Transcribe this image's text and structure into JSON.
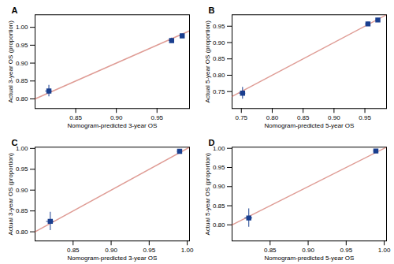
{
  "chart_data": [
    {
      "type": "scatter",
      "title": "A",
      "xlabel": "Nomogram-predicted 3-year OS",
      "ylabel": "Actual 3-year OS (proportion)",
      "xlim": [
        0.8,
        0.99
      ],
      "ylim": [
        0.773,
        1.035
      ],
      "xticks": [
        0.85,
        {
          "value": 0.9,
          "label": "0.90"
        },
        0.95
      ],
      "yticks": [
        {
          "value": 0.8,
          "label": "0.80"
        },
        0.85,
        {
          "value": 0.9,
          "label": "0.90"
        },
        0.95,
        {
          "value": 1.0,
          "label": "1.00"
        }
      ],
      "grid": false,
      "series": [
        {
          "type": "line",
          "color": "#c0392b",
          "x": [
            0.8,
            0.99
          ],
          "values": [
            0.8,
            0.99
          ]
        },
        {
          "type": "scatter",
          "marker": "square",
          "color": "#1a3f8f",
          "x": [
            0.817,
            0.968,
            0.981
          ],
          "values": [
            0.822,
            0.963,
            0.976
          ],
          "xerr": [
            0.004,
            0.003,
            0.003
          ],
          "yerr": [
            0.016,
            0.007,
            0.005
          ]
        }
      ]
    },
    {
      "type": "scatter",
      "title": "B",
      "xlabel": "Nomogram-predicted 5-year OS",
      "ylabel": "Actual 5-year OS (proportion)",
      "xlim": [
        0.735,
        0.985
      ],
      "ylim": [
        0.698,
        0.985
      ],
      "xticks": [
        0.75,
        {
          "value": 0.8,
          "label": "0.80"
        },
        0.85,
        {
          "value": 0.9,
          "label": "0.90"
        },
        0.95
      ],
      "yticks": [
        0.75,
        {
          "value": 0.8,
          "label": "0.80"
        },
        0.85,
        {
          "value": 0.9,
          "label": "0.90"
        },
        0.95
      ],
      "grid": false,
      "series": [
        {
          "type": "line",
          "color": "#c0392b",
          "x": [
            0.735,
            0.985
          ],
          "values": [
            0.735,
            0.985
          ]
        },
        {
          "type": "scatter",
          "marker": "square",
          "color": "#1a3f8f",
          "x": [
            0.752,
            0.955,
            0.971
          ],
          "values": [
            0.745,
            0.957,
            0.969
          ],
          "xerr": [
            0.005,
            0.004,
            0.003
          ],
          "yerr": [
            0.018,
            0.006,
            0.005
          ]
        }
      ]
    },
    {
      "type": "scatter",
      "title": "C",
      "xlabel": "Nomogram-predicted 3-year OS",
      "ylabel": "Actual 3-year OS (proportion)",
      "xlim": [
        0.8,
        1.003
      ],
      "ylim": [
        0.778,
        1.003
      ],
      "xticks": [
        0.85,
        {
          "value": 0.9,
          "label": "0.90"
        },
        0.95,
        {
          "value": 1.0,
          "label": "1.00"
        }
      ],
      "yticks": [
        {
          "value": 0.8,
          "label": "0.80"
        },
        0.85,
        {
          "value": 0.9,
          "label": "0.90"
        },
        0.95,
        {
          "value": 1.0,
          "label": "1.00"
        }
      ],
      "grid": false,
      "series": [
        {
          "type": "line",
          "color": "#c0392b",
          "x": [
            0.8,
            1.003
          ],
          "values": [
            0.8,
            1.003
          ]
        },
        {
          "type": "scatter",
          "marker": "square",
          "color": "#1a3f8f",
          "x": [
            0.82,
            0.99
          ],
          "values": [
            0.825,
            0.993
          ],
          "xerr": [
            0.005,
            0.003
          ],
          "yerr": [
            0.022,
            0.004
          ]
        }
      ]
    },
    {
      "type": "scatter",
      "title": "D",
      "xlabel": "Nomogram-predicted 5-year OS",
      "ylabel": "Actual 5-year OS (proportion)",
      "xlim": [
        0.8,
        1.003
      ],
      "ylim": [
        0.758,
        1.003
      ],
      "xticks": [
        0.85,
        {
          "value": 0.9,
          "label": "0.90"
        },
        0.95,
        {
          "value": 1.0,
          "label": "1.00"
        }
      ],
      "yticks": [
        {
          "value": 0.8,
          "label": "0.80"
        },
        0.85,
        {
          "value": 0.9,
          "label": "0.90"
        },
        0.95,
        {
          "value": 1.0,
          "label": "1.00"
        }
      ],
      "grid": false,
      "series": [
        {
          "type": "line",
          "color": "#c0392b",
          "x": [
            0.8,
            1.003
          ],
          "values": [
            0.8,
            1.003
          ]
        },
        {
          "type": "scatter",
          "marker": "square",
          "color": "#1a3f8f",
          "x": [
            0.822,
            0.989
          ],
          "values": [
            0.818,
            0.993
          ],
          "xerr": [
            0.005,
            0.003
          ],
          "yerr": [
            0.024,
            0.004
          ]
        }
      ]
    }
  ]
}
